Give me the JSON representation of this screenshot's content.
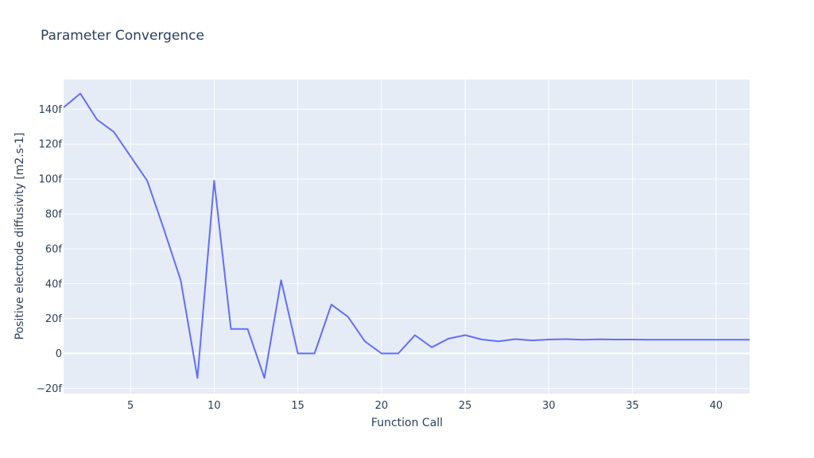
{
  "chart_data": {
    "type": "line",
    "title": "Parameter Convergence",
    "xlabel": "Function Call",
    "ylabel": "Positive electrode diffusivity [m2.s-1]",
    "xlim": [
      1,
      42
    ],
    "ylim": [
      -23,
      157
    ],
    "x_ticks": [
      5,
      10,
      15,
      20,
      25,
      30,
      35,
      40
    ],
    "y_ticks": [
      {
        "value": -20,
        "label": "−20f"
      },
      {
        "value": 0,
        "label": "0"
      },
      {
        "value": 20,
        "label": "20f"
      },
      {
        "value": 40,
        "label": "40f"
      },
      {
        "value": 60,
        "label": "60f"
      },
      {
        "value": 80,
        "label": "80f"
      },
      {
        "value": 100,
        "label": "100f"
      },
      {
        "value": 120,
        "label": "120f"
      },
      {
        "value": 140,
        "label": "140f"
      }
    ],
    "grid": true,
    "series": [
      {
        "color": "#636efa",
        "x": [
          1,
          2,
          3,
          4,
          5,
          6,
          7,
          8,
          9,
          10,
          11,
          12,
          13,
          14,
          15,
          16,
          17,
          18,
          19,
          20,
          21,
          22,
          23,
          24,
          25,
          26,
          27,
          28,
          29,
          30,
          31,
          32,
          33,
          34,
          35,
          36,
          37,
          38,
          39,
          40,
          41,
          42
        ],
        "y": [
          141,
          149,
          134,
          127,
          113,
          99,
          71,
          42,
          -14,
          99,
          14,
          14,
          -14,
          42,
          0,
          0,
          28,
          21,
          7,
          0,
          0,
          10.5,
          3.5,
          8.5,
          10.5,
          8,
          7,
          8.2,
          7.5,
          8,
          8.2,
          7.9,
          8.1,
          8,
          8,
          7.9,
          7.9,
          7.9,
          7.9,
          7.9,
          7.9,
          7.9
        ]
      }
    ]
  }
}
